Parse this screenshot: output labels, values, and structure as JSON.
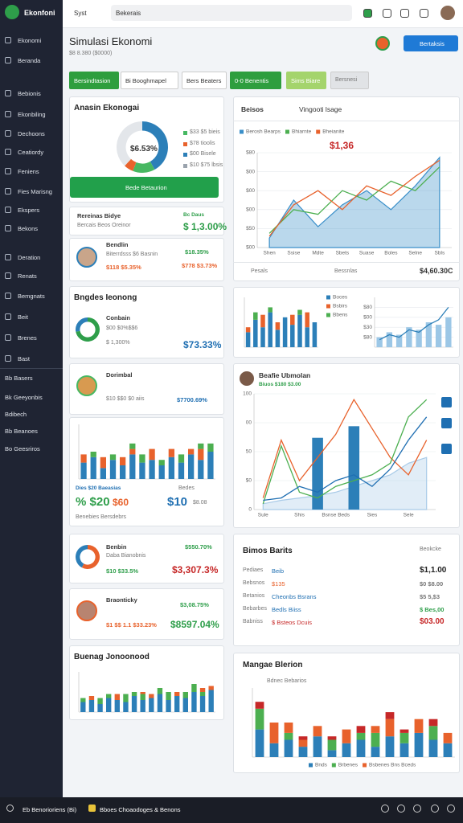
{
  "sidebar": {
    "brand": "Ekonfoni",
    "nav": [
      "Ekonomi",
      "Beranda",
      "Bebionis",
      "Ekonbiling",
      "Dechoons",
      "Ceatiordy",
      "Feniens",
      "Fies Marisng",
      "Ekspers",
      "Bekons",
      "Deration",
      "Renats",
      "Bemgnats",
      "Beit",
      "Brenes",
      "Bast"
    ],
    "groups": [
      "Bb Basers",
      "Bk Geeyonbis",
      "Bdibech",
      "Bb Beanoes",
      "Bo Geesriros"
    ]
  },
  "topbar": {
    "search_prefix": "Syst",
    "search": "Bekerais"
  },
  "header": {
    "title": "Simulasi Ekonomi",
    "subtitle": "$8 8.380 ($0000)",
    "button": "Bertaksis"
  },
  "tabs": [
    "Bersindtasion",
    "Bi Booghmapel",
    "Bers Beaters",
    "0-0 Benentis",
    "Sims Biare",
    "Bersnesi"
  ],
  "cards": {
    "summary": {
      "title": "Anasin Ekonogai",
      "center": "$6.53%",
      "legend": [
        "$33 $5 bieis",
        "$78 tioolis",
        "$00 Bisele",
        "$10 $75 lbsis"
      ],
      "legend_colors": [
        "#47b862",
        "#e8622c",
        "#2c7fb8",
        "#9aa3ad"
      ],
      "button": "Bede Betaurion",
      "chart": {
        "type": "pie",
        "values": [
          42,
          14,
          6,
          38
        ],
        "colors": [
          "#2c7fb8",
          "#47b862",
          "#e8622c",
          "#e3e6ea"
        ]
      }
    },
    "income": {
      "title": "Rereinas Bidye",
      "subtitle": "Bercais Beos Oreinor",
      "tag": "Bc Daus",
      "value": "$ 1,3.00%"
    },
    "profile1": {
      "name": "Bendlin",
      "subtitle": "Biterrdsss $6 Basnin",
      "change": "$18.35%",
      "note": "$118 $5.35%",
      "value": "$778 $3.73%"
    },
    "balance": {
      "title": "Bngdes Ieonong",
      "name": "Conbain",
      "subtitle": "$00 $0%$$6",
      "note": "$ 1,300%",
      "value": "$73.33%",
      "chart": {
        "type": "pie",
        "values": [
          72,
          28
        ],
        "colors": [
          "#2e9e4a",
          "#2c7fb8"
        ]
      }
    },
    "profile2": {
      "name": "Dorimbal",
      "subtitle": "$10 $$0 $0 aiis",
      "value": "$7700.69%"
    },
    "activity": {
      "caption": "Dies $20 Baeasias",
      "caption_right": "Bedes",
      "figure_1": "% $20",
      "figure_2": "$60",
      "figure_3": "$10",
      "figure_4": "$8.08",
      "footer": "Benebies Bersdebrs",
      "chart": {
        "type": "bar",
        "stacked": true,
        "ylim": [
          0,
          100
        ],
        "series": [
          {
            "color": "#2c7fb8",
            "values": [
              30,
              40,
              20,
              35,
              25,
              45,
              30,
              35,
              25,
              40,
              30,
              45,
              35,
              50
            ]
          },
          {
            "color": "#e8622c",
            "values": [
              15,
              null,
              20,
              null,
              15,
              10,
              null,
              20,
              null,
              15,
              null,
              10,
              20,
              null
            ]
          },
          {
            "color": "#4caf50",
            "values": [
              null,
              10,
              null,
              10,
              null,
              10,
              15,
              null,
              10,
              null,
              15,
              null,
              10,
              15
            ]
          }
        ]
      }
    },
    "profile3": {
      "name": "Benbin",
      "subtitle": "Daba Bianobnis",
      "note": "$10 $33.5%",
      "change": "$550.70%",
      "value": "$3,307.3%",
      "chart": {
        "type": "pie",
        "values": [
          58,
          42
        ],
        "colors": [
          "#e8622c",
          "#2c7fb8"
        ]
      }
    },
    "profile4": {
      "name": "Braonticky",
      "subtitle": "$1 $$ 1.1 $33.23%",
      "change": "$3,08.75%",
      "value": "$8597.04%"
    },
    "budget": {
      "title": "Buenag Jonoonood",
      "chart": {
        "type": "bar",
        "stacked": true,
        "ylim": [
          0,
          100
        ],
        "series": [
          {
            "color": "#2c7fb8",
            "values": [
              25,
              30,
              20,
              35,
              30,
              25,
              40,
              30,
              35,
              45,
              30,
              40,
              35,
              50,
              40,
              55
            ]
          },
          {
            "color": "#4caf50",
            "values": [
              10,
              null,
              15,
              10,
              null,
              20,
              10,
              15,
              null,
              15,
              20,
              null,
              15,
              20,
              10,
              null
            ]
          },
          {
            "color": "#e8622c",
            "values": [
              null,
              10,
              null,
              null,
              15,
              null,
              null,
              5,
              10,
              null,
              null,
              10,
              null,
              null,
              10,
              10
            ]
          }
        ]
      }
    }
  },
  "right": {
    "trend": {
      "tabs": [
        "Beisos",
        "Vingooti lsage"
      ],
      "stat": "$1,36",
      "footer_left": "Pesals",
      "footer_mid": "Bessnlas",
      "footer_value": "$4,60.30C",
      "chart": {
        "type": "line",
        "ylim": [
          0,
          100
        ],
        "yticks": [
          {
            "value": 0,
            "label": "$00"
          },
          {
            "value": 20,
            "label": "$50"
          },
          {
            "value": 40,
            "label": "$00"
          },
          {
            "value": 60,
            "label": "$00"
          },
          {
            "value": 80,
            "label": "$00"
          },
          {
            "value": 100,
            "label": "$80"
          }
        ],
        "categories": [
          "Shen",
          "Ssise",
          "Mdte",
          "Sbets",
          "Suase",
          "Boles",
          "Selne",
          "Sbls"
        ],
        "series": [
          {
            "name": "Berosh Bearps",
            "kind": "area",
            "color": "#3a8fc9",
            "values": [
              10,
              50,
              22,
              45,
              60,
              40,
              65,
              95
            ]
          },
          {
            "name": "Bhiarnte",
            "kind": "line",
            "color": "#4caf50",
            "values": [
              15,
              40,
              35,
              60,
              50,
              70,
              60,
              85
            ]
          },
          {
            "name": "Bheianite",
            "kind": "line",
            "color": "#e8622c",
            "values": [
              12,
              45,
              60,
              40,
              65,
              55,
              75,
              92
            ]
          }
        ]
      }
    },
    "mini": {
      "bars": {
        "type": "bar",
        "stacked": true,
        "ylim": [
          0,
          100
        ],
        "series": [
          {
            "name": "Boces",
            "color": "#2c7fb8",
            "values": [
              30,
              55,
              40,
              70,
              35,
              60,
              45,
              65,
              40,
              50
            ]
          },
          {
            "name": "Bsbirs",
            "color": "#e8622c",
            "values": [
              10,
              null,
              25,
              null,
              15,
              null,
              20,
              null,
              30,
              null
            ]
          },
          {
            "name": "Bbens",
            "color": "#4caf50",
            "values": [
              null,
              15,
              null,
              10,
              null,
              null,
              null,
              10,
              null,
              null
            ]
          }
        ]
      },
      "growth": {
        "type": "bar",
        "ylim": [
          0,
          100
        ],
        "yticks": [
          {
            "value": 20,
            "label": "$80"
          },
          {
            "value": 40,
            "label": "$30"
          },
          {
            "value": 60,
            "label": "$00"
          },
          {
            "value": 80,
            "label": "$80"
          }
        ],
        "series": [
          {
            "kind": "bar",
            "color": "#9cc7e6",
            "values": [
              20,
              30,
              25,
              40,
              35,
              50,
              45,
              60
            ]
          },
          {
            "kind": "line",
            "color": "#2c7fb8",
            "values": [
              15,
              25,
              20,
              35,
              30,
              45,
              55,
              80
            ]
          }
        ]
      }
    },
    "forecast": {
      "title": "Beafie Ubmolan",
      "subtitle": "Biuos $180 $3.00",
      "chart": {
        "type": "line",
        "ylim": [
          0,
          100
        ],
        "yticks": [
          {
            "value": 0,
            "label": "0"
          },
          {
            "value": 25,
            "label": "$0"
          },
          {
            "value": 50,
            "label": "50"
          },
          {
            "value": 75,
            "label": "00"
          },
          {
            "value": 100,
            "label": "100"
          }
        ],
        "categories": [
          "Sule",
          null,
          "Shis",
          null,
          "Bsnse Beds",
          null,
          "Sies",
          null,
          "Sele",
          null
        ],
        "series": [
          {
            "kind": "area",
            "color": "#a9cbe8",
            "values": [
              5,
              8,
              10,
              12,
              15,
              20,
              25,
              30,
              40,
              45
            ]
          },
          {
            "kind": "bar",
            "color": "#2c7fb8",
            "values": [
              null,
              null,
              null,
              62,
              null,
              72,
              null,
              null,
              null,
              null
            ]
          },
          {
            "kind": "line",
            "color": "#e8622c",
            "values": [
              10,
              60,
              25,
              45,
              65,
              95,
              70,
              45,
              30,
              60
            ]
          },
          {
            "kind": "line",
            "color": "#4caf50",
            "values": [
              5,
              55,
              15,
              10,
              20,
              25,
              30,
              40,
              80,
              95
            ]
          },
          {
            "kind": "line",
            "color": "#1f6fb2",
            "values": [
              8,
              10,
              20,
              15,
              25,
              30,
              20,
              35,
              60,
              80
            ]
          }
        ]
      }
    },
    "list": {
      "title": "Bimos Barits",
      "header": "Beokcke",
      "rows": [
        [
          "Pediaes",
          "Beib",
          "$1,1.00"
        ],
        [
          "Bebsnos",
          "$135",
          "$0 $8.00"
        ],
        [
          "Betanios",
          "Cheonbs Bsrans",
          "$5 5,$3"
        ],
        [
          "Bebarbes",
          "Bedls Biiss",
          "$ Bes,00"
        ],
        [
          "Babniss",
          "$ Bsteos Dcuis",
          "$03.00"
        ]
      ],
      "mid_colors": [
        "#1f6fb2",
        "#e8622c",
        "#1f6fb2",
        "#1f6fb2",
        "#c62828"
      ],
      "value_colors": [
        "#222222",
        "#777777",
        "#777777",
        "#2e9e4a",
        "#c62828"
      ]
    },
    "sectors": {
      "title": "Mangae Blerion",
      "subtitle": "Bdnec Bebarios",
      "chart": {
        "type": "bar",
        "stacked": true,
        "ylim": [
          0,
          100
        ],
        "series": [
          {
            "name": "Bnds",
            "color": "#2c7fb8",
            "values": [
              40,
              20,
              25,
              15,
              30,
              10,
              20,
              25,
              15,
              30,
              20,
              35,
              25,
              20
            ]
          },
          {
            "name": "Brbenes",
            "color": "#4caf50",
            "values": [
              30,
              null,
              10,
              null,
              null,
              15,
              null,
              10,
              20,
              null,
              15,
              null,
              20,
              null
            ]
          },
          {
            "name": "Bsbenes Bns Bceds",
            "color": "#e8622c",
            "values": [
              null,
              30,
              15,
              10,
              15,
              null,
              20,
              null,
              10,
              25,
              null,
              20,
              null,
              15
            ]
          },
          {
            "color": "#c62828",
            "values": [
              10,
              null,
              null,
              5,
              null,
              5,
              null,
              10,
              null,
              10,
              5,
              null,
              10,
              null
            ]
          }
        ]
      }
    }
  },
  "footer": {
    "left": "Eb Benorioriens (Bi)",
    "right": "Bboes Choaodoges & Benons"
  }
}
